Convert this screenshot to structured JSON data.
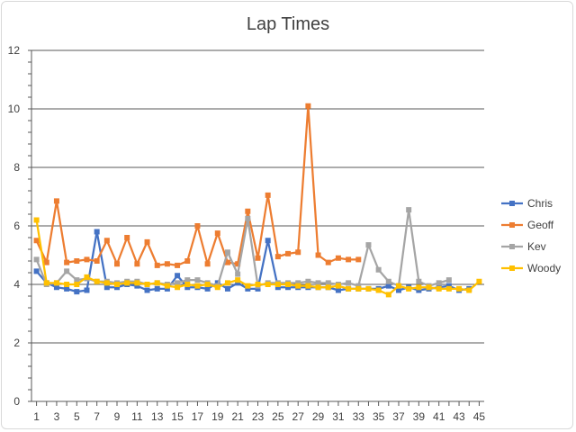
{
  "chart_data": {
    "type": "line",
    "title": "Lap Times",
    "xlabel": "",
    "ylabel": "",
    "ylim": [
      0,
      12
    ],
    "yticks": [
      0,
      2,
      4,
      6,
      8,
      10,
      12
    ],
    "xtick_labels": [
      1,
      3,
      5,
      7,
      9,
      11,
      13,
      15,
      17,
      19,
      21,
      23,
      25,
      27,
      29,
      31,
      33,
      35,
      37,
      39,
      41,
      43,
      45
    ],
    "grid": "horizontal",
    "legend": "right",
    "x": [
      1,
      2,
      3,
      4,
      5,
      6,
      7,
      8,
      9,
      10,
      11,
      12,
      13,
      14,
      15,
      16,
      17,
      18,
      19,
      20,
      21,
      22,
      23,
      24,
      25,
      26,
      27,
      28,
      29,
      30,
      31,
      32,
      33,
      34,
      35,
      36,
      37,
      38,
      39,
      40,
      41,
      42,
      43,
      44,
      45
    ],
    "series": [
      {
        "name": "Chris",
        "color": "#4472c4",
        "values": [
          4.45,
          4.05,
          3.9,
          3.85,
          3.75,
          3.8,
          5.8,
          3.9,
          3.9,
          4.0,
          3.95,
          3.8,
          3.85,
          3.85,
          4.3,
          3.9,
          3.9,
          3.85,
          4.05,
          3.85,
          4.05,
          3.85,
          3.85,
          5.5,
          3.9,
          3.9,
          3.9,
          3.9,
          3.9,
          3.9,
          3.8,
          3.85,
          3.85,
          3.85,
          3.85,
          3.95,
          3.8,
          3.9,
          3.8,
          3.85,
          3.9,
          3.95,
          3.8,
          3.85,
          null
        ]
      },
      {
        "name": "Geoff",
        "color": "#ed7d31",
        "values": [
          5.5,
          4.75,
          6.85,
          4.75,
          4.8,
          4.85,
          4.8,
          5.5,
          4.7,
          5.6,
          4.7,
          5.45,
          4.65,
          4.7,
          4.65,
          4.8,
          6.0,
          4.7,
          5.75,
          4.75,
          4.7,
          6.5,
          4.9,
          7.05,
          4.95,
          5.05,
          5.1,
          10.1,
          5.0,
          4.75,
          4.9,
          4.85,
          4.85,
          null,
          null,
          null,
          null,
          null,
          null,
          null,
          null,
          null,
          null,
          null,
          null
        ]
      },
      {
        "name": "Kev",
        "color": "#a5a5a5",
        "values": [
          4.85,
          4.0,
          4.05,
          4.45,
          4.15,
          4.2,
          4.1,
          4.1,
          4.05,
          4.1,
          4.1,
          4.0,
          4.05,
          4.0,
          4.05,
          4.15,
          4.15,
          4.05,
          3.95,
          5.1,
          4.35,
          6.25,
          3.95,
          4.05,
          4.05,
          4.05,
          4.05,
          4.1,
          4.05,
          4.05,
          4.0,
          4.05,
          3.95,
          5.35,
          4.5,
          4.1,
          3.95,
          6.55,
          4.1,
          3.95,
          4.05,
          4.15,
          null,
          null,
          null
        ]
      },
      {
        "name": "Woody",
        "color": "#ffc000",
        "values": [
          6.2,
          4.05,
          4.05,
          4.0,
          4.0,
          4.25,
          4.1,
          4.05,
          4.0,
          4.05,
          4.05,
          4.0,
          4.05,
          3.95,
          3.9,
          4.0,
          3.95,
          4.0,
          3.9,
          4.05,
          4.15,
          3.95,
          4.0,
          4.0,
          4.0,
          4.0,
          3.95,
          3.95,
          3.9,
          3.9,
          3.95,
          3.85,
          3.85,
          3.85,
          3.8,
          3.65,
          3.95,
          3.85,
          3.9,
          3.9,
          3.85,
          3.85,
          3.85,
          3.8,
          4.1
        ]
      }
    ]
  }
}
